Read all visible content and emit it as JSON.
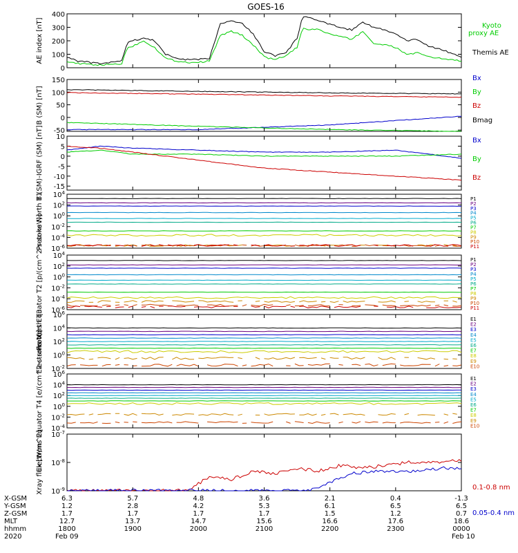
{
  "title": "GOES-16",
  "colors": {
    "black": "#000000",
    "blue": "#0000cc",
    "green": "#00cc00",
    "red": "#cc0000",
    "P": [
      "#000000",
      "#6a0080",
      "#0000cc",
      "#0088cc",
      "#00aacc",
      "#00aa88",
      "#00cc00",
      "#cccc00",
      "#cc8800",
      "#cc4400",
      "#cc0000"
    ],
    "E": [
      "#000000",
      "#6a0080",
      "#0000cc",
      "#0088cc",
      "#00aacc",
      "#00aa88",
      "#00cc00",
      "#cccc00",
      "#cc8800",
      "#cc4400"
    ]
  },
  "chart_data": [
    {
      "type": "line",
      "id": "ae",
      "ylabel": "AE index [nT]",
      "ylim": [
        0,
        400
      ],
      "yticks": [
        "0",
        "100",
        "200",
        "300",
        "400"
      ],
      "xlim": [
        0,
        360
      ],
      "series": [
        {
          "name": "Kyoto proxy AE",
          "color": "green",
          "x": [
            0,
            10,
            20,
            30,
            40,
            50,
            55,
            60,
            70,
            80,
            90,
            100,
            110,
            120,
            130,
            140,
            150,
            160,
            170,
            180,
            190,
            200,
            210,
            215,
            220,
            225,
            230,
            240,
            250,
            260,
            270,
            280,
            290,
            300,
            310,
            320,
            330,
            340,
            350,
            360
          ],
          "values": [
            50,
            30,
            25,
            20,
            25,
            30,
            150,
            160,
            200,
            150,
            70,
            50,
            40,
            40,
            50,
            240,
            270,
            240,
            170,
            80,
            60,
            90,
            150,
            290,
            280,
            290,
            280,
            250,
            230,
            210,
            270,
            180,
            170,
            150,
            100,
            110,
            80,
            70,
            60,
            50
          ]
        },
        {
          "name": "Themis AE",
          "color": "black",
          "x": [
            0,
            10,
            20,
            30,
            40,
            50,
            55,
            60,
            70,
            80,
            90,
            100,
            110,
            120,
            130,
            140,
            150,
            160,
            170,
            180,
            190,
            200,
            210,
            215,
            220,
            225,
            230,
            240,
            250,
            260,
            270,
            280,
            290,
            300,
            310,
            320,
            330,
            340,
            350,
            360
          ],
          "values": [
            80,
            50,
            40,
            30,
            40,
            50,
            190,
            200,
            220,
            200,
            100,
            70,
            60,
            60,
            70,
            330,
            350,
            330,
            250,
            120,
            90,
            110,
            220,
            380,
            370,
            360,
            350,
            320,
            300,
            280,
            340,
            300,
            280,
            250,
            200,
            210,
            160,
            140,
            110,
            80
          ]
        }
      ]
    },
    {
      "type": "line",
      "id": "b",
      "ylabel": "B (SM) [nT]",
      "ylim": [
        -55,
        150
      ],
      "yticks": [
        "-50",
        "0",
        "50",
        "100",
        "150"
      ],
      "xlim": [
        0,
        360
      ],
      "series": [
        {
          "name": "Bx",
          "color": "blue",
          "x": [
            0,
            120,
            240,
            360
          ],
          "values": [
            -48,
            -48,
            -30,
            5
          ]
        },
        {
          "name": "By",
          "color": "green",
          "x": [
            0,
            120,
            240,
            360
          ],
          "values": [
            -20,
            -35,
            -48,
            -55
          ]
        },
        {
          "name": "Bz",
          "color": "red",
          "x": [
            0,
            120,
            240,
            360
          ],
          "values": [
            98,
            92,
            85,
            80
          ]
        },
        {
          "name": "Bmag",
          "color": "black",
          "x": [
            0,
            120,
            240,
            360
          ],
          "values": [
            110,
            103,
            97,
            93
          ]
        }
      ]
    },
    {
      "type": "line",
      "id": "bigrf",
      "ylabel": "B (SM)-IGRF (SM) [nT]",
      "ylim": [
        -17,
        10
      ],
      "yticks": [
        "-15",
        "-10",
        "-5",
        "0",
        "5",
        "10"
      ],
      "xlim": [
        0,
        360
      ],
      "series": [
        {
          "name": "Bx",
          "color": "blue",
          "x": [
            0,
            30,
            60,
            120,
            180,
            240,
            300,
            360
          ],
          "values": [
            3,
            5,
            4,
            3,
            2,
            2,
            3,
            -1
          ]
        },
        {
          "name": "By",
          "color": "green",
          "x": [
            0,
            30,
            60,
            120,
            180,
            240,
            300,
            360
          ],
          "values": [
            2,
            3,
            1,
            1,
            0,
            0,
            0,
            1
          ]
        },
        {
          "name": "Bz",
          "color": "red",
          "x": [
            0,
            30,
            60,
            120,
            180,
            240,
            300,
            360
          ],
          "values": [
            5,
            4,
            2,
            -2,
            -6,
            -8,
            -10,
            -12
          ]
        }
      ]
    },
    {
      "type": "line",
      "id": "pn",
      "ylabel": "Protons North T1",
      "yscale": "log",
      "ylim": [
        -6,
        4
      ],
      "yticks": [
        "10^-6",
        "10^-4",
        "10^-2",
        "10^0",
        "10^2",
        "10^4"
      ],
      "levels": [
        3.2,
        2.4,
        1.8,
        0.6,
        -0.5,
        -1.2,
        -2.8,
        -3.6,
        -5.5,
        -5.5,
        -5.5
      ],
      "labels": [
        "P1",
        "P2",
        "P3",
        "P4",
        "P5",
        "P6",
        "P7",
        "P8",
        "P9",
        "P10",
        "P11"
      ]
    },
    {
      "type": "line",
      "id": "pe",
      "ylabel": "Protons Equator T2 [p/(cm^2-s-sr-keV)]",
      "yscale": "log",
      "ylim": [
        -6,
        4
      ],
      "yticks": [
        "10^-6",
        "10^-4",
        "10^-2",
        "10^0",
        "10^2",
        "10^4"
      ],
      "levels": [
        3.0,
        2.2,
        1.6,
        0.4,
        -0.6,
        -1.3,
        -2.8,
        -3.8,
        -4.5,
        -5.2,
        -5.5
      ],
      "labels": [
        "P1",
        "P2",
        "P3",
        "P4",
        "P5",
        "P6",
        "P7",
        "P8",
        "P9",
        "P10",
        "P11"
      ]
    },
    {
      "type": "line",
      "id": "en",
      "ylabel": "Electrons North T3",
      "yscale": "log",
      "ylim": [
        -2,
        6
      ],
      "yticks": [
        "10^-2",
        "10^0",
        "10^2",
        "10^4",
        "10^6"
      ],
      "levels": [
        4.0,
        3.5,
        3.0,
        2.5,
        2.0,
        1.5,
        1.0,
        0.5,
        -0.5,
        -1.5
      ],
      "labels": [
        "E1",
        "E2",
        "E3",
        "E4",
        "E5",
        "E6",
        "E7",
        "E8",
        "E9",
        "E10"
      ]
    },
    {
      "type": "line",
      "id": "ee",
      "ylabel": "Electrons Equator T4 [e/(cm^2-s-sr-keV)]",
      "yscale": "log",
      "ylim": [
        -4,
        6
      ],
      "yticks": [
        "10^-4",
        "10^-2",
        "10^0",
        "10^2",
        "10^4",
        "10^6"
      ],
      "levels": [
        4.0,
        3.5,
        3.0,
        2.5,
        2.0,
        1.5,
        1.0,
        0.5,
        -1.5,
        -3.0
      ],
      "labels": [
        "E1",
        "E2",
        "E3",
        "E4",
        "E5",
        "E6",
        "E7",
        "E8",
        "E9",
        "E10"
      ]
    },
    {
      "type": "line",
      "id": "xray",
      "ylabel": "Xray flux [W/m^2]",
      "yscale": "log",
      "ylim": [
        -9,
        -7
      ],
      "yticks": [
        "10^-9",
        "10^-8",
        "10^-7"
      ],
      "xlim": [
        0,
        360
      ],
      "series": [
        {
          "name": "0.1-0.8 nm",
          "color": "red",
          "x": [
            0,
            110,
            130,
            150,
            170,
            190,
            210,
            230,
            250,
            270,
            290,
            310,
            330,
            360
          ],
          "values": [
            -9,
            -9,
            -8.5,
            -8.6,
            -8.3,
            -8.4,
            -8.2,
            -8.3,
            -8.1,
            -8.2,
            -8.1,
            -8.0,
            -8.0,
            -7.9
          ]
        },
        {
          "name": "0.05-0.4 nm",
          "color": "blue",
          "x": [
            0,
            180,
            220,
            240,
            260,
            280,
            300,
            320,
            340,
            360
          ],
          "values": [
            -9,
            -9,
            -9,
            -8.7,
            -8.4,
            -8.3,
            -8.3,
            -8.3,
            -8.2,
            -8.2
          ]
        }
      ]
    }
  ],
  "xaxis": {
    "row_labels": [
      "X-GSM",
      "Y-GSM",
      "Z-GSM",
      "MLT",
      "hhmm",
      "2020"
    ],
    "columns": [
      [
        "6.3",
        "1.2",
        "1.7",
        "12.7",
        "1800",
        "Feb 09"
      ],
      [
        "5.7",
        "2.8",
        "1.7",
        "13.7",
        "1900",
        ""
      ],
      [
        "4.8",
        "4.2",
        "1.7",
        "14.7",
        "2000",
        ""
      ],
      [
        "3.6",
        "5.3",
        "1.7",
        "15.6",
        "2100",
        ""
      ],
      [
        "2.1",
        "6.1",
        "1.5",
        "16.6",
        "2200",
        ""
      ],
      [
        "0.4",
        "6.5",
        "1.2",
        "17.6",
        "2300",
        ""
      ],
      [
        "-1.3",
        "6.5",
        "0.7",
        "18.6",
        "0000",
        "Feb 10"
      ]
    ]
  }
}
